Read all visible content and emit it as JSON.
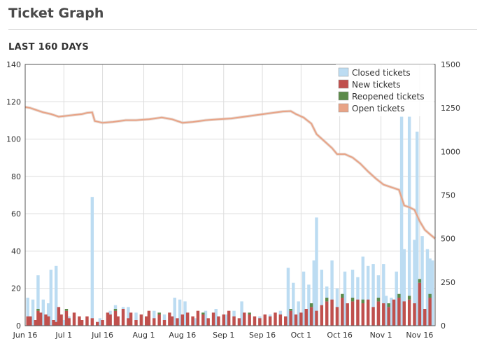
{
  "header": {
    "title": "Ticket Graph",
    "subtitle": "LAST 160 DAYS"
  },
  "colors": {
    "closed": "#bcdcf2",
    "new": "#c0504d",
    "reopened": "#5c8a4a",
    "open": "#e8a386",
    "grid": "#dddddd",
    "axis": "#555555"
  },
  "chart_data": {
    "type": "bar",
    "title": "",
    "xlabel": "",
    "ylabel": "",
    "y2label": "",
    "ylim": [
      0,
      140
    ],
    "y2lim": [
      0,
      1500
    ],
    "yticks": [
      "0",
      "20",
      "40",
      "60",
      "80",
      "100",
      "120",
      "140"
    ],
    "y2ticks": [
      "0",
      "250",
      "500",
      "750",
      "1000",
      "1250",
      "1500"
    ],
    "x_start": "2016-06-16",
    "x_end": "2016-11-22",
    "xticks": [
      {
        "date": "2016-06-16",
        "label": "Jun 16"
      },
      {
        "date": "2016-07-01",
        "label": "Jul 1"
      },
      {
        "date": "2016-07-16",
        "label": "Jul 16"
      },
      {
        "date": "2016-08-01",
        "label": "Aug 1"
      },
      {
        "date": "2016-08-16",
        "label": "Aug 16"
      },
      {
        "date": "2016-09-01",
        "label": "Sep 1"
      },
      {
        "date": "2016-09-16",
        "label": "Sep 16"
      },
      {
        "date": "2016-10-01",
        "label": "Oct 1"
      },
      {
        "date": "2016-10-16",
        "label": "Oct 16"
      },
      {
        "date": "2016-11-01",
        "label": "Nov 1"
      },
      {
        "date": "2016-11-16",
        "label": "Nov 16"
      }
    ],
    "grid": true,
    "legend_position": "top-right",
    "series": [
      {
        "name": "Closed tickets",
        "kind": "bar",
        "axis": "left",
        "color": "#bcdcf2",
        "points": [
          [
            "2016-06-17",
            15
          ],
          [
            "2016-06-19",
            14
          ],
          [
            "2016-06-21",
            27
          ],
          [
            "2016-06-23",
            14
          ],
          [
            "2016-06-25",
            12
          ],
          [
            "2016-06-26",
            30
          ],
          [
            "2016-06-28",
            32
          ],
          [
            "2016-07-01",
            3
          ],
          [
            "2016-07-03",
            5
          ],
          [
            "2016-07-05",
            5
          ],
          [
            "2016-07-08",
            3
          ],
          [
            "2016-07-10",
            3
          ],
          [
            "2016-07-12",
            69
          ],
          [
            "2016-07-15",
            4
          ],
          [
            "2016-07-19",
            8
          ],
          [
            "2016-07-21",
            11
          ],
          [
            "2016-07-24",
            10
          ],
          [
            "2016-07-26",
            10
          ],
          [
            "2016-07-29",
            7
          ],
          [
            "2016-08-02",
            5
          ],
          [
            "2016-08-05",
            8
          ],
          [
            "2016-08-09",
            6
          ],
          [
            "2016-08-13",
            15
          ],
          [
            "2016-08-15",
            14
          ],
          [
            "2016-08-17",
            13
          ],
          [
            "2016-08-21",
            4
          ],
          [
            "2016-08-25",
            8
          ],
          [
            "2016-08-29",
            9
          ],
          [
            "2016-09-02",
            6
          ],
          [
            "2016-09-05",
            8
          ],
          [
            "2016-09-08",
            13
          ],
          [
            "2016-09-11",
            6
          ],
          [
            "2016-09-15",
            5
          ],
          [
            "2016-09-19",
            6
          ],
          [
            "2016-09-23",
            8
          ],
          [
            "2016-09-26",
            31
          ],
          [
            "2016-09-28",
            23
          ],
          [
            "2016-09-30",
            13
          ],
          [
            "2016-10-02",
            29
          ],
          [
            "2016-10-04",
            22
          ],
          [
            "2016-10-06",
            35
          ],
          [
            "2016-10-07",
            58
          ],
          [
            "2016-10-09",
            30
          ],
          [
            "2016-10-11",
            21
          ],
          [
            "2016-10-13",
            35
          ],
          [
            "2016-10-15",
            20
          ],
          [
            "2016-10-18",
            29
          ],
          [
            "2016-10-21",
            30
          ],
          [
            "2016-10-23",
            26
          ],
          [
            "2016-10-25",
            37
          ],
          [
            "2016-10-27",
            32
          ],
          [
            "2016-10-29",
            33
          ],
          [
            "2016-10-31",
            27
          ],
          [
            "2016-11-02",
            33
          ],
          [
            "2016-11-03",
            16
          ],
          [
            "2016-11-05",
            15
          ],
          [
            "2016-11-07",
            29
          ],
          [
            "2016-11-09",
            112
          ],
          [
            "2016-11-10",
            41
          ],
          [
            "2016-11-12",
            112
          ],
          [
            "2016-11-14",
            46
          ],
          [
            "2016-11-15",
            104
          ],
          [
            "2016-11-17",
            48
          ],
          [
            "2016-11-19",
            41
          ],
          [
            "2016-11-20",
            36
          ],
          [
            "2016-11-21",
            35
          ]
        ]
      },
      {
        "name": "New tickets",
        "kind": "bar",
        "axis": "left",
        "color": "#c0504d",
        "points": [
          [
            "2016-06-17",
            5
          ],
          [
            "2016-06-18",
            5
          ],
          [
            "2016-06-20",
            3
          ],
          [
            "2016-06-21",
            8
          ],
          [
            "2016-06-22",
            7
          ],
          [
            "2016-06-24",
            6
          ],
          [
            "2016-06-25",
            5
          ],
          [
            "2016-06-27",
            3
          ],
          [
            "2016-06-28",
            2
          ],
          [
            "2016-06-29",
            10
          ],
          [
            "2016-06-30",
            6
          ],
          [
            "2016-07-02",
            8
          ],
          [
            "2016-07-03",
            4
          ],
          [
            "2016-07-05",
            7
          ],
          [
            "2016-07-07",
            5
          ],
          [
            "2016-07-08",
            3
          ],
          [
            "2016-07-10",
            5
          ],
          [
            "2016-07-12",
            4
          ],
          [
            "2016-07-14",
            2
          ],
          [
            "2016-07-16",
            3
          ],
          [
            "2016-07-18",
            7
          ],
          [
            "2016-07-19",
            6
          ],
          [
            "2016-07-21",
            8
          ],
          [
            "2016-07-22",
            5
          ],
          [
            "2016-07-24",
            9
          ],
          [
            "2016-07-26",
            4
          ],
          [
            "2016-07-27",
            7
          ],
          [
            "2016-07-29",
            3
          ],
          [
            "2016-07-31",
            6
          ],
          [
            "2016-08-02",
            5
          ],
          [
            "2016-08-03",
            8
          ],
          [
            "2016-08-05",
            4
          ],
          [
            "2016-08-07",
            6
          ],
          [
            "2016-08-09",
            3
          ],
          [
            "2016-08-11",
            7
          ],
          [
            "2016-08-12",
            5
          ],
          [
            "2016-08-14",
            4
          ],
          [
            "2016-08-16",
            6
          ],
          [
            "2016-08-18",
            7
          ],
          [
            "2016-08-20",
            5
          ],
          [
            "2016-08-22",
            8
          ],
          [
            "2016-08-24",
            6
          ],
          [
            "2016-08-26",
            4
          ],
          [
            "2016-08-28",
            7
          ],
          [
            "2016-08-30",
            5
          ],
          [
            "2016-09-01",
            6
          ],
          [
            "2016-09-03",
            8
          ],
          [
            "2016-09-05",
            5
          ],
          [
            "2016-09-07",
            4
          ],
          [
            "2016-09-09",
            7
          ],
          [
            "2016-09-11",
            6
          ],
          [
            "2016-09-13",
            5
          ],
          [
            "2016-09-15",
            4
          ],
          [
            "2016-09-17",
            6
          ],
          [
            "2016-09-19",
            5
          ],
          [
            "2016-09-21",
            7
          ],
          [
            "2016-09-23",
            6
          ],
          [
            "2016-09-25",
            5
          ],
          [
            "2016-09-27",
            8
          ],
          [
            "2016-09-29",
            6
          ],
          [
            "2016-10-01",
            7
          ],
          [
            "2016-10-03",
            9
          ],
          [
            "2016-10-05",
            10
          ],
          [
            "2016-10-07",
            8
          ],
          [
            "2016-10-09",
            11
          ],
          [
            "2016-10-11",
            13
          ],
          [
            "2016-10-13",
            14
          ],
          [
            "2016-10-15",
            10
          ],
          [
            "2016-10-17",
            15
          ],
          [
            "2016-10-19",
            12
          ],
          [
            "2016-10-21",
            13
          ],
          [
            "2016-10-23",
            14
          ],
          [
            "2016-10-25",
            12
          ],
          [
            "2016-10-27",
            14
          ],
          [
            "2016-10-29",
            10
          ],
          [
            "2016-10-31",
            13
          ],
          [
            "2016-11-02",
            12
          ],
          [
            "2016-11-04",
            10
          ],
          [
            "2016-11-06",
            14
          ],
          [
            "2016-11-08",
            15
          ],
          [
            "2016-11-10",
            13
          ],
          [
            "2016-11-12",
            14
          ],
          [
            "2016-11-14",
            12
          ],
          [
            "2016-11-16",
            23
          ],
          [
            "2016-11-18",
            9
          ],
          [
            "2016-11-20",
            15
          ]
        ]
      },
      {
        "name": "Reopened tickets",
        "kind": "bar",
        "axis": "left",
        "color": "#5c8a4a",
        "points": [
          [
            "2016-06-21",
            1
          ],
          [
            "2016-07-02",
            1
          ],
          [
            "2016-07-21",
            1
          ],
          [
            "2016-08-07",
            1
          ],
          [
            "2016-08-24",
            1
          ],
          [
            "2016-09-11",
            1
          ],
          [
            "2016-09-27",
            1
          ],
          [
            "2016-10-05",
            2
          ],
          [
            "2016-10-11",
            2
          ],
          [
            "2016-10-17",
            2
          ],
          [
            "2016-10-21",
            2
          ],
          [
            "2016-10-25",
            2
          ],
          [
            "2016-10-31",
            2
          ],
          [
            "2016-11-04",
            2
          ],
          [
            "2016-11-08",
            2
          ],
          [
            "2016-11-12",
            2
          ],
          [
            "2016-11-16",
            2
          ],
          [
            "2016-11-20",
            2
          ]
        ]
      },
      {
        "name": "Open tickets",
        "kind": "line",
        "axis": "right",
        "color": "#e8a386",
        "points": [
          [
            "2016-06-16",
            1255
          ],
          [
            "2016-06-18",
            1250
          ],
          [
            "2016-06-20",
            1240
          ],
          [
            "2016-06-23",
            1225
          ],
          [
            "2016-06-26",
            1215
          ],
          [
            "2016-06-29",
            1200
          ],
          [
            "2016-07-02",
            1205
          ],
          [
            "2016-07-05",
            1210
          ],
          [
            "2016-07-08",
            1215
          ],
          [
            "2016-07-10",
            1222
          ],
          [
            "2016-07-12",
            1225
          ],
          [
            "2016-07-13",
            1175
          ],
          [
            "2016-07-16",
            1165
          ],
          [
            "2016-07-20",
            1170
          ],
          [
            "2016-07-25",
            1180
          ],
          [
            "2016-07-29",
            1180
          ],
          [
            "2016-08-03",
            1185
          ],
          [
            "2016-08-08",
            1195
          ],
          [
            "2016-08-12",
            1185
          ],
          [
            "2016-08-16",
            1165
          ],
          [
            "2016-08-20",
            1170
          ],
          [
            "2016-08-25",
            1180
          ],
          [
            "2016-08-30",
            1185
          ],
          [
            "2016-09-04",
            1190
          ],
          [
            "2016-09-09",
            1200
          ],
          [
            "2016-09-14",
            1210
          ],
          [
            "2016-09-19",
            1220
          ],
          [
            "2016-09-24",
            1230
          ],
          [
            "2016-09-27",
            1232
          ],
          [
            "2016-09-29",
            1215
          ],
          [
            "2016-10-02",
            1195
          ],
          [
            "2016-10-05",
            1160
          ],
          [
            "2016-10-07",
            1100
          ],
          [
            "2016-10-10",
            1060
          ],
          [
            "2016-10-13",
            1020
          ],
          [
            "2016-10-15",
            985
          ],
          [
            "2016-10-18",
            985
          ],
          [
            "2016-10-21",
            965
          ],
          [
            "2016-10-24",
            930
          ],
          [
            "2016-10-27",
            885
          ],
          [
            "2016-10-30",
            845
          ],
          [
            "2016-11-02",
            810
          ],
          [
            "2016-11-05",
            795
          ],
          [
            "2016-11-08",
            780
          ],
          [
            "2016-11-10",
            690
          ],
          [
            "2016-11-12",
            680
          ],
          [
            "2016-11-14",
            665
          ],
          [
            "2016-11-16",
            600
          ],
          [
            "2016-11-18",
            550
          ],
          [
            "2016-11-20",
            525
          ],
          [
            "2016-11-22",
            500
          ]
        ]
      }
    ]
  }
}
